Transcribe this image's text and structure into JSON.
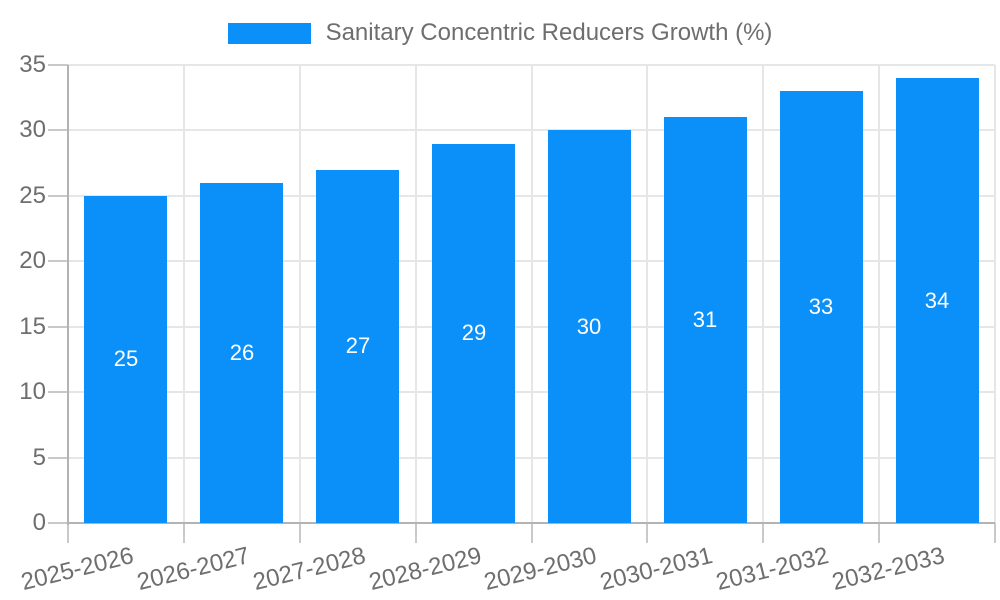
{
  "chart_data": {
    "type": "bar",
    "legend": "Sanitary Concentric Reducers Growth (%)",
    "legend_position": "top-center",
    "categories": [
      "2025-2026",
      "2026-2027",
      "2027-2028",
      "2028-2029",
      "2029-2030",
      "2030-2031",
      "2031-2032",
      "2032-2033"
    ],
    "values": [
      25,
      26,
      27,
      29,
      30,
      31,
      33,
      34
    ],
    "xlabel": "",
    "ylabel": "",
    "ylim": [
      0,
      35
    ],
    "yticks": [
      0,
      5,
      10,
      15,
      20,
      25,
      30,
      35
    ],
    "grid": true,
    "bar_labels_inside": true
  },
  "colors": {
    "bar": "#0a90f8",
    "bar_label": "#ffffff",
    "gridline": "#e6e6e6",
    "tick_line": "#c9c9c9",
    "axis_line": "#b3b3b3",
    "text": "#6e6e6e",
    "background": "#ffffff"
  }
}
